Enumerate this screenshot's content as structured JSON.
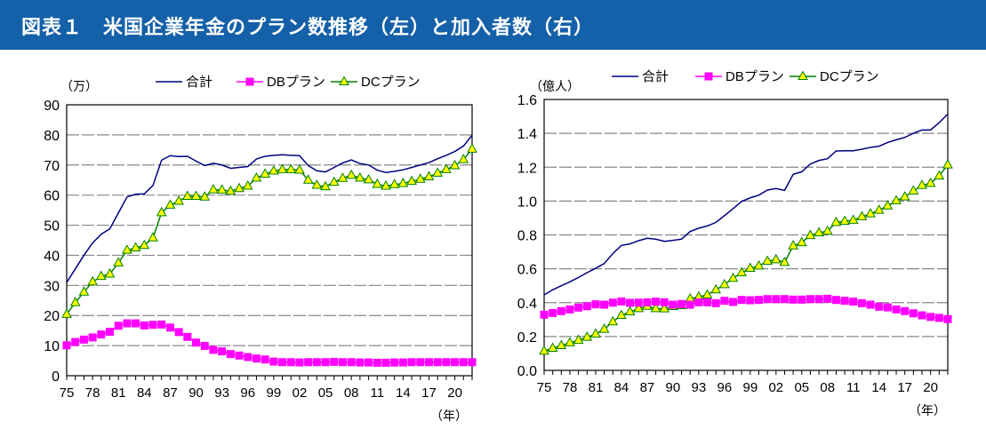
{
  "header": {
    "title": "図表１　米国企業年金のプラン数推移（左）と加入者数（右）",
    "color": "#1460a9"
  },
  "chart_data": [
    {
      "type": "line",
      "unit_label": "（万）",
      "xlabel": "（年）",
      "x": [
        1975,
        1976,
        1977,
        1978,
        1979,
        1980,
        1981,
        1982,
        1983,
        1984,
        1985,
        1986,
        1987,
        1988,
        1989,
        1990,
        1991,
        1992,
        1993,
        1994,
        1995,
        1996,
        1997,
        1998,
        1999,
        2000,
        2001,
        2002,
        2003,
        2004,
        2005,
        2006,
        2007,
        2008,
        2009,
        2010,
        2011,
        2012,
        2013,
        2014,
        2015,
        2016,
        2017,
        2018,
        2019,
        2020,
        2021,
        2022
      ],
      "xtick_labels": [
        "75",
        "78",
        "81",
        "84",
        "87",
        "90",
        "93",
        "96",
        "99",
        "02",
        "05",
        "08",
        "11",
        "14",
        "17",
        "20"
      ],
      "ylim": [
        0,
        90
      ],
      "yticks": [
        "0",
        "10",
        "20",
        "30",
        "40",
        "50",
        "60",
        "70",
        "80",
        "90"
      ],
      "grid": true,
      "legend": "top",
      "series": [
        {
          "name": "合計",
          "color": "#000080",
          "marker": "none",
          "values": [
            31,
            35.5,
            40,
            44.1,
            47,
            48.8,
            54.1,
            59.4,
            60.3,
            60.4,
            63.2,
            71.6,
            73.1,
            72.8,
            72.9,
            71.3,
            69.8,
            70.6,
            70,
            68.9,
            69.2,
            69.5,
            72,
            72.9,
            73.2,
            73.4,
            73.2,
            73.1,
            69.8,
            68.1,
            67.7,
            69.2,
            70.7,
            71.7,
            70.5,
            70,
            68.3,
            67.5,
            67.9,
            68.4,
            69.2,
            70,
            70.8,
            72.1,
            73.2,
            74.5,
            76.3,
            79.9
          ]
        },
        {
          "name": "DBプラン",
          "color": "#ff00ff",
          "marker": "square",
          "values": [
            10.1,
            11.2,
            12,
            12.7,
            13.7,
            14.6,
            16.6,
            17.4,
            17.4,
            16.7,
            16.9,
            17,
            16,
            14.5,
            12.9,
            11,
            9.9,
            8.6,
            8.1,
            7.2,
            6.7,
            6.2,
            5.7,
            5.4,
            4.7,
            4.5,
            4.5,
            4.4,
            4.5,
            4.5,
            4.5,
            4.6,
            4.5,
            4.5,
            4.4,
            4.4,
            4.3,
            4.3,
            4.4,
            4.4,
            4.5,
            4.5,
            4.5,
            4.5,
            4.5,
            4.5,
            4.5,
            4.5
          ]
        },
        {
          "name": "DCプラン",
          "color": "#008000",
          "marker": "triangle",
          "marker_fill": "#ffff00",
          "values": [
            20.4,
            24.3,
            27.8,
            31.2,
            33,
            33.8,
            37.5,
            41.7,
            42.5,
            43.3,
            45.8,
            54.2,
            56.7,
            58,
            59.6,
            59.6,
            59.4,
            61.8,
            61.7,
            61.3,
            62.2,
            63,
            65.7,
            67,
            68,
            68.5,
            68.5,
            68.3,
            65,
            63.3,
            62.8,
            64.3,
            65.6,
            66.6,
            65.7,
            65.1,
            63.6,
            63,
            63.5,
            63.9,
            64.6,
            65.3,
            66.1,
            67.3,
            68.5,
            69.8,
            71.8,
            75.3
          ]
        }
      ]
    },
    {
      "type": "line",
      "unit_label": "（億人）",
      "xlabel": "（年）",
      "x": [
        1975,
        1976,
        1977,
        1978,
        1979,
        1980,
        1981,
        1982,
        1983,
        1984,
        1985,
        1986,
        1987,
        1988,
        1989,
        1990,
        1991,
        1992,
        1993,
        1994,
        1995,
        1996,
        1997,
        1998,
        1999,
        2000,
        2001,
        2002,
        2003,
        2004,
        2005,
        2006,
        2007,
        2008,
        2009,
        2010,
        2011,
        2012,
        2013,
        2014,
        2015,
        2016,
        2017,
        2018,
        2019,
        2020,
        2021,
        2022
      ],
      "xtick_labels": [
        "75",
        "78",
        "81",
        "84",
        "87",
        "90",
        "93",
        "96",
        "99",
        "02",
        "05",
        "08",
        "11",
        "14",
        "17",
        "20"
      ],
      "ylim": [
        0,
        1.6
      ],
      "yticks": [
        "0.0",
        "0.2",
        "0.4",
        "0.6",
        "0.8",
        "1.0",
        "1.2",
        "1.4",
        "1.6"
      ],
      "grid": true,
      "legend": "top",
      "series": [
        {
          "name": "合計",
          "color": "#000080",
          "marker": "none",
          "values": [
            0.446,
            0.476,
            0.5,
            0.523,
            0.549,
            0.577,
            0.603,
            0.631,
            0.69,
            0.738,
            0.747,
            0.766,
            0.78,
            0.775,
            0.762,
            0.768,
            0.775,
            0.82,
            0.84,
            0.853,
            0.874,
            0.914,
            0.955,
            0.998,
            1.019,
            1.035,
            1.065,
            1.074,
            1.063,
            1.158,
            1.173,
            1.219,
            1.24,
            1.25,
            1.296,
            1.297,
            1.297,
            1.306,
            1.317,
            1.324,
            1.346,
            1.362,
            1.376,
            1.4,
            1.42,
            1.42,
            1.463,
            1.514
          ]
        },
        {
          "name": "DBプラン",
          "color": "#ff00ff",
          "marker": "square",
          "values": [
            0.329,
            0.339,
            0.35,
            0.36,
            0.371,
            0.379,
            0.39,
            0.388,
            0.4,
            0.407,
            0.399,
            0.4,
            0.402,
            0.406,
            0.402,
            0.388,
            0.392,
            0.388,
            0.402,
            0.402,
            0.397,
            0.411,
            0.404,
            0.416,
            0.414,
            0.416,
            0.421,
            0.421,
            0.421,
            0.418,
            0.418,
            0.421,
            0.421,
            0.423,
            0.416,
            0.411,
            0.406,
            0.397,
            0.388,
            0.376,
            0.372,
            0.36,
            0.35,
            0.337,
            0.325,
            0.316,
            0.31,
            0.303
          ]
        },
        {
          "name": "DCプラン",
          "color": "#008000",
          "marker": "triangle",
          "marker_fill": "#ffff00",
          "values": [
            0.114,
            0.131,
            0.147,
            0.163,
            0.178,
            0.196,
            0.215,
            0.243,
            0.287,
            0.325,
            0.346,
            0.365,
            0.379,
            0.365,
            0.364,
            0.378,
            0.383,
            0.423,
            0.434,
            0.446,
            0.476,
            0.507,
            0.544,
            0.577,
            0.603,
            0.617,
            0.645,
            0.654,
            0.638,
            0.736,
            0.755,
            0.797,
            0.813,
            0.822,
            0.874,
            0.881,
            0.887,
            0.908,
            0.925,
            0.946,
            0.972,
            1.002,
            1.025,
            1.06,
            1.093,
            1.105,
            1.149,
            1.214
          ]
        }
      ]
    }
  ]
}
